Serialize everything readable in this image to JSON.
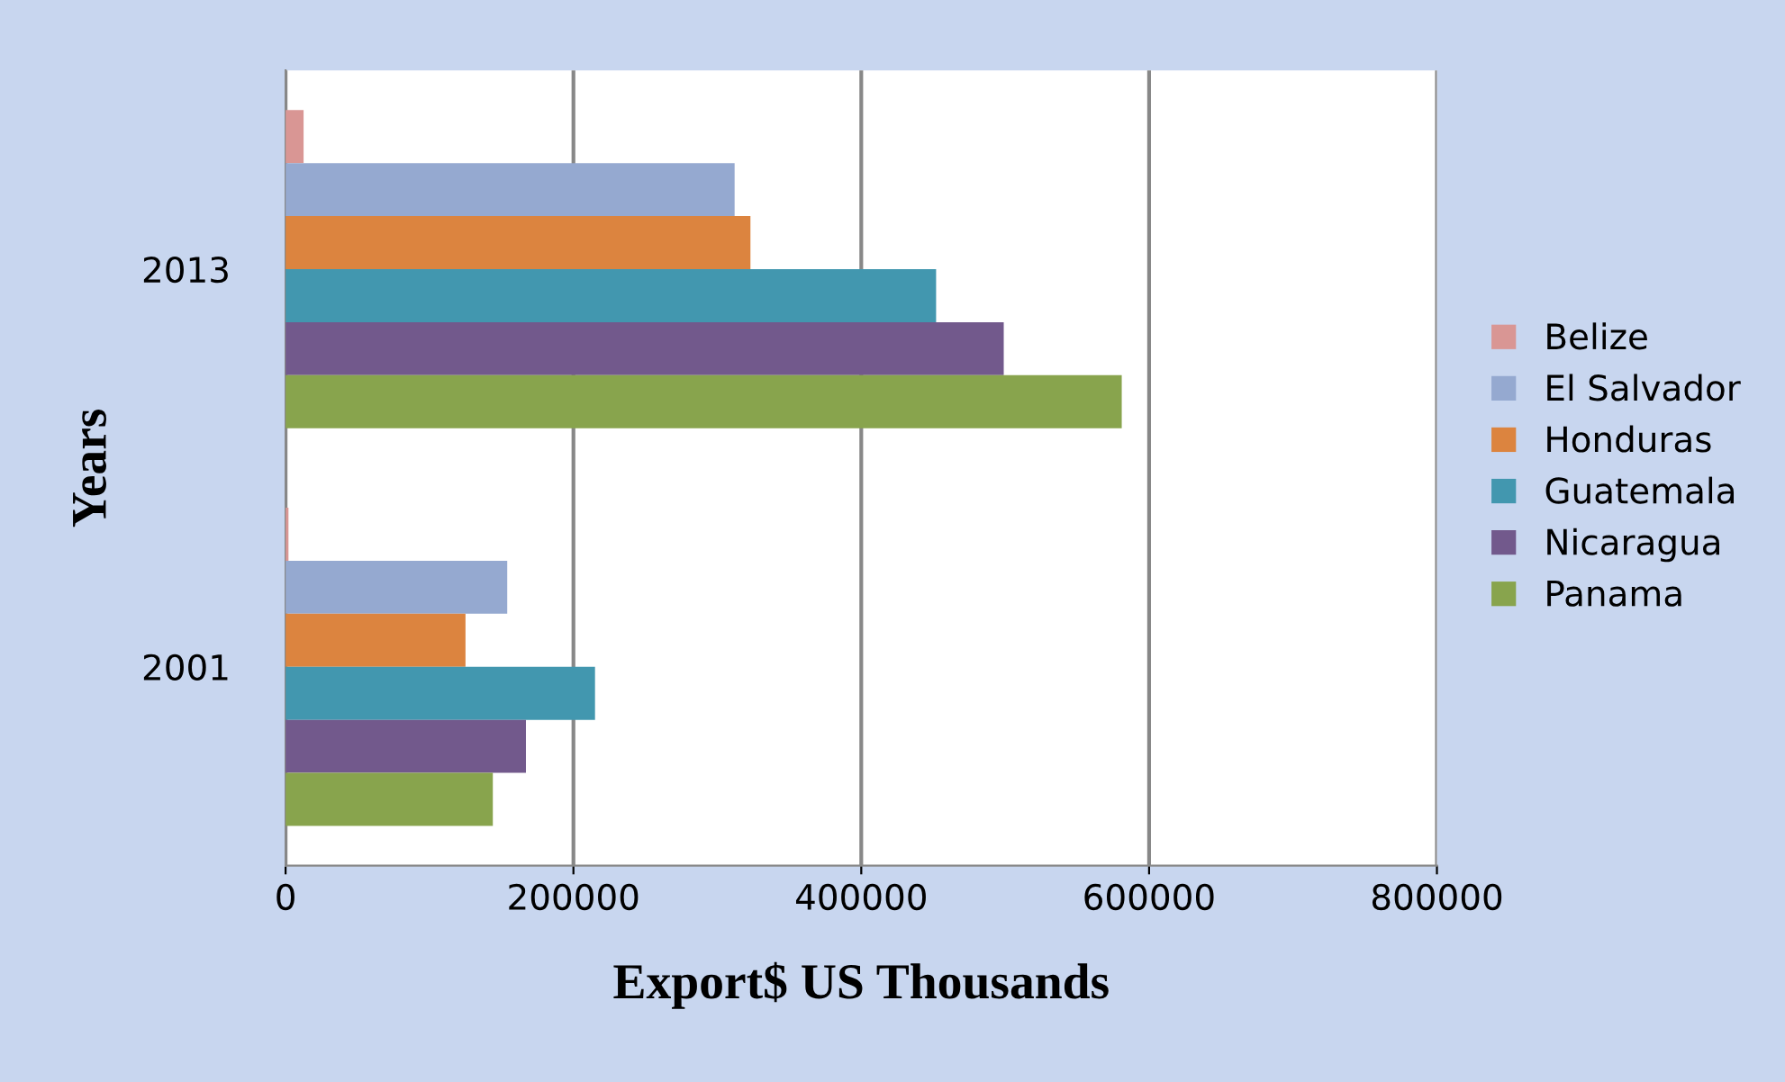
{
  "chart_data": {
    "type": "bar",
    "orientation": "horizontal",
    "xlabel": "Export$ US Thousands",
    "ylabel": "Years",
    "categories": [
      "2013",
      "2001"
    ],
    "series": [
      {
        "name": "Belize",
        "color": "#d99694",
        "values": [
          12500,
          2000
        ]
      },
      {
        "name": "El Salvador",
        "color": "#95a9d0",
        "values": [
          312000,
          154000
        ]
      },
      {
        "name": "Honduras",
        "color": "#dc843f",
        "values": [
          323000,
          125000
        ]
      },
      {
        "name": "Guatemala",
        "color": "#4297af",
        "values": [
          452000,
          215000
        ]
      },
      {
        "name": "Nicaragua",
        "color": "#72598c",
        "values": [
          499000,
          167000
        ]
      },
      {
        "name": "Panama",
        "color": "#88a44d",
        "values": [
          581000,
          144000
        ]
      }
    ],
    "xlim": [
      0,
      800000
    ],
    "xticks": [
      0,
      200000,
      400000,
      600000,
      800000
    ],
    "grid": "x",
    "legend": "right"
  }
}
